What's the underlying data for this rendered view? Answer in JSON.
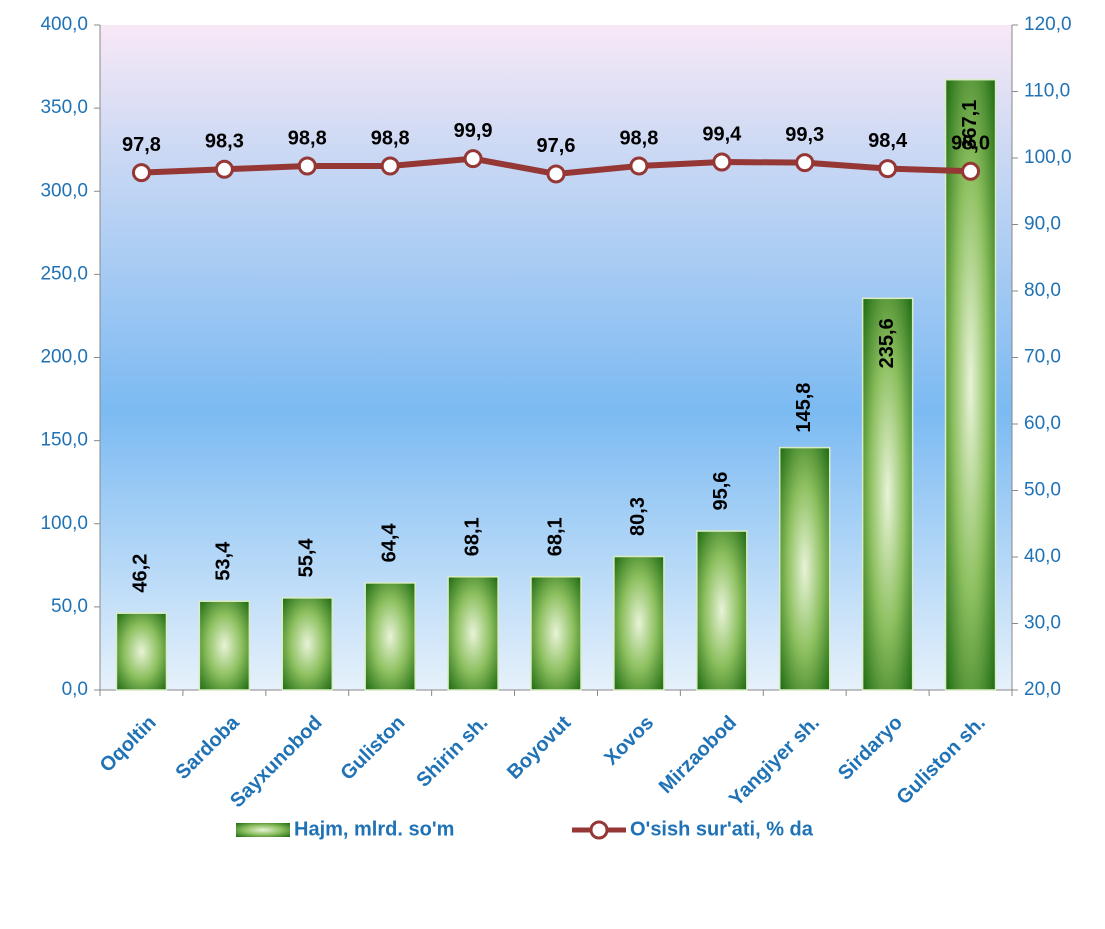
{
  "chart_data": {
    "type": "bar_line",
    "categories": [
      "Oqoltin",
      "Sardoba",
      "Sayxunobod",
      "Guliston",
      "Shirin sh.",
      "Boyovut",
      "Xovos",
      "Mirzaobod",
      "Yangiyer sh.",
      "Sirdaryo",
      "Guliston sh."
    ],
    "series": [
      {
        "name": "Hajm, mlrd. so'm",
        "type": "bar",
        "axis": "y",
        "color": "#2e7d1e",
        "values": [
          46.2,
          53.4,
          55.4,
          64.4,
          68.1,
          68.1,
          80.3,
          95.6,
          145.8,
          235.6,
          367.1
        ],
        "value_labels": [
          "46,2",
          "53,4",
          "55,4",
          "64,4",
          "68,1",
          "68,1",
          "80,3",
          "95,6",
          "145,8",
          "235,6",
          "367,1"
        ]
      },
      {
        "name": "O'sish sur'ati, % da",
        "type": "line",
        "axis": "y2",
        "color": "#953735",
        "values": [
          97.8,
          98.3,
          98.8,
          98.8,
          99.9,
          97.6,
          98.8,
          99.4,
          99.3,
          98.4,
          98.0
        ],
        "value_labels": [
          "97,8",
          "98,3",
          "98,8",
          "98,8",
          "99,9",
          "97,6",
          "98,8",
          "99,4",
          "99,3",
          "98,4",
          "98,0"
        ]
      }
    ],
    "ylim": [
      0,
      400
    ],
    "yticks": [
      {
        "value": 0,
        "label": "0,0"
      },
      {
        "value": 50,
        "label": "50,0"
      },
      {
        "value": 100,
        "label": "100,0"
      },
      {
        "value": 150,
        "label": "150,0"
      },
      {
        "value": 200,
        "label": "200,0"
      },
      {
        "value": 250,
        "label": "250,0"
      },
      {
        "value": 300,
        "label": "300,0"
      },
      {
        "value": 350,
        "label": "350,0"
      },
      {
        "value": 400,
        "label": "400,0"
      }
    ],
    "y2lim": [
      20,
      120
    ],
    "y2ticks": [
      {
        "value": 20,
        "label": "20,0"
      },
      {
        "value": 30,
        "label": "30,0"
      },
      {
        "value": 40,
        "label": "40,0"
      },
      {
        "value": 50,
        "label": "50,0"
      },
      {
        "value": 60,
        "label": "60,0"
      },
      {
        "value": 70,
        "label": "70,0"
      },
      {
        "value": 80,
        "label": "80,0"
      },
      {
        "value": 90,
        "label": "90,0"
      },
      {
        "value": 100,
        "label": "100,0"
      },
      {
        "value": 110,
        "label": "110,0"
      },
      {
        "value": 120,
        "label": "120,0"
      }
    ],
    "legend": "bottom"
  }
}
